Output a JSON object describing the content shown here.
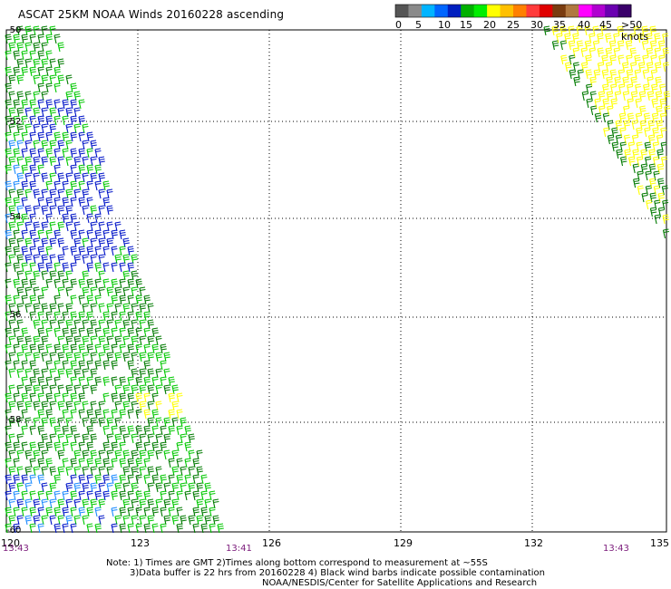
{
  "title": "ASCAT 25KM NOAA Winds 20160228 ascending",
  "colorbar": {
    "labels": [
      "0",
      "5",
      "10",
      "15",
      "20",
      "25",
      "30",
      "35",
      "40",
      "45",
      ">50 knots"
    ],
    "colors": [
      "#555555",
      "#8a8a8a",
      "#00b4ff",
      "#0066ff",
      "#001fbf",
      "#00b000",
      "#00ee00",
      "#ffff00",
      "#ffc000",
      "#ff8000",
      "#ff3b3b",
      "#e00000",
      "#7a3c10",
      "#b07840",
      "#ff00ff",
      "#b000d0",
      "#6a00b0",
      "#3a006a"
    ]
  },
  "axes": {
    "lat_labels": [
      "-50",
      "-52",
      "-54",
      "-56",
      "-58",
      "-60"
    ],
    "lon_labels": [
      "120",
      "123",
      "126",
      "129",
      "132",
      "135"
    ]
  },
  "times": [
    "13:43",
    "13:41",
    "13:43"
  ],
  "notes": [
    "Note: 1) Times are GMT 2)Times along bottom correspond to measurement at ~55S",
    "3)Data buffer is 22 hrs from 20160228 4) Black wind barbs indicate possible contamination",
    "NOAA/NESDIS/Center for Satellite Applications and Research"
  ],
  "legend_colors": {
    "dark_green": "#007a00",
    "green": "#00c800",
    "blue": "#0014c8",
    "light_blue": "#1e8cff",
    "yellow": "#ffff00"
  }
}
